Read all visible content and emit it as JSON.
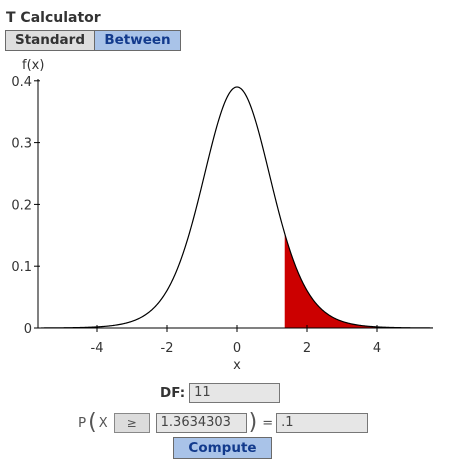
{
  "app": {
    "title": "T Calculator"
  },
  "tabs": [
    {
      "label": "Standard",
      "selected": false
    },
    {
      "label": "Between",
      "selected": true
    }
  ],
  "chart_data": {
    "type": "area",
    "title": "",
    "xlabel": "x",
    "ylabel": "f(x)",
    "xlim": [
      -5.6,
      5.6
    ],
    "ylim": [
      0,
      0.4
    ],
    "x_ticks": [
      -4,
      -2,
      0,
      2,
      4
    ],
    "y_ticks": [
      0,
      0.1,
      0.2,
      0.3,
      0.4
    ],
    "x_tick_labels": [
      "-4",
      "-2",
      "0",
      "2",
      "4"
    ],
    "y_tick_labels": [
      "0",
      "0.1",
      "0.2",
      "0.3",
      "0.4"
    ],
    "distribution": "t",
    "df": 11,
    "shaded_region": {
      "from": 1.3634303,
      "to": 5.6
    },
    "curve_color": "#000000",
    "shade_color": "#cc0000",
    "grid": false
  },
  "form": {
    "df_label": "DF:",
    "df_value": "11",
    "p_label": "P",
    "x_label": "X",
    "operator": "≥",
    "x_value": "1.3634303",
    "equals": "=",
    "probability": ".1",
    "compute_label": "Compute"
  }
}
